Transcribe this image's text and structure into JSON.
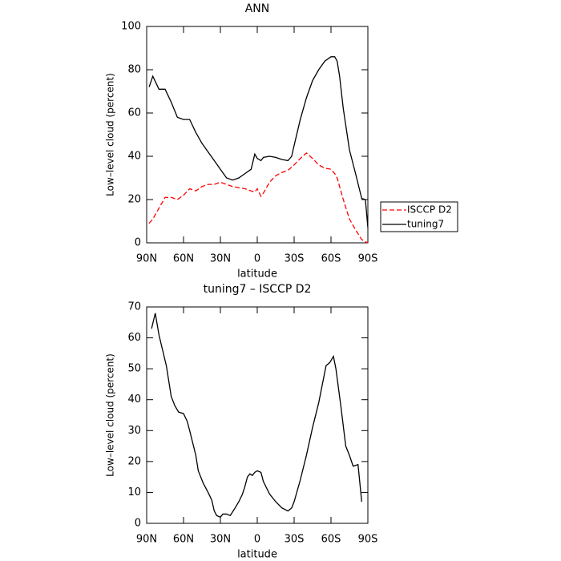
{
  "chart_data": [
    {
      "type": "line",
      "title": "ANN",
      "xlabel": "latitude",
      "ylabel": "Low–level cloud (percent)",
      "xlim": [
        90,
        -90
      ],
      "ylim": [
        0,
        100
      ],
      "xticks": [
        {
          "value": 90,
          "label": "90N"
        },
        {
          "value": 60,
          "label": "60N"
        },
        {
          "value": 30,
          "label": "30N"
        },
        0,
        {
          "value": -30,
          "label": "30S"
        },
        {
          "value": -60,
          "label": "60S"
        },
        {
          "value": -90,
          "label": "90S"
        }
      ],
      "yticks": [
        0,
        20,
        40,
        60,
        80,
        100
      ],
      "legend": "right",
      "x": [
        88,
        85,
        80,
        75,
        70,
        65,
        60,
        55,
        50,
        45,
        40,
        35,
        30,
        25,
        20,
        15,
        10,
        5,
        2,
        0,
        -3,
        -5,
        -10,
        -15,
        -20,
        -25,
        -28,
        -30,
        -35,
        -40,
        -45,
        -50,
        -55,
        -60,
        -63,
        -65,
        -67,
        -70,
        -75,
        -80,
        -85,
        -88,
        -90
      ],
      "series": [
        {
          "name": "ISCCP D2",
          "color": "#ff0000",
          "dash": true,
          "values": [
            9,
            11,
            16,
            21,
            21,
            20,
            22,
            25,
            24,
            26,
            27,
            27,
            28,
            27,
            26,
            25.5,
            25,
            24,
            23.5,
            25,
            21.5,
            23,
            28,
            31,
            32.5,
            33.5,
            35,
            36,
            39,
            41.5,
            39,
            36,
            34.5,
            34,
            32,
            30,
            26,
            20,
            11,
            6,
            1.5,
            0.5,
            0
          ]
        },
        {
          "name": "tuning7",
          "color": "#000000",
          "dash": false,
          "values": [
            72,
            77,
            71,
            71,
            65,
            58,
            57,
            57,
            51,
            46,
            42,
            38,
            34,
            30,
            29,
            30,
            32,
            34,
            41,
            39,
            38,
            39.5,
            40,
            39.5,
            38.5,
            38,
            40,
            45,
            57,
            67,
            75,
            80,
            84,
            86,
            86,
            84,
            77,
            62,
            43,
            32,
            20.5,
            20,
            7
          ]
        }
      ]
    },
    {
      "type": "line",
      "title": "tuning7 – ISCCP D2",
      "xlabel": "latitude",
      "ylabel": "Low–level cloud (percent)",
      "xlim": [
        90,
        -90
      ],
      "ylim": [
        0,
        70
      ],
      "xticks": [
        {
          "value": 90,
          "label": "90N"
        },
        {
          "value": 60,
          "label": "60N"
        },
        {
          "value": 30,
          "label": "30N"
        },
        0,
        {
          "value": -30,
          "label": "30S"
        },
        {
          "value": -60,
          "label": "60S"
        },
        {
          "value": -90,
          "label": "90S"
        }
      ],
      "yticks": [
        0,
        10,
        20,
        30,
        40,
        50,
        60,
        70
      ],
      "x": [
        86,
        83,
        80,
        77,
        74,
        72,
        70,
        67,
        64,
        60,
        57,
        55,
        50,
        48,
        44,
        40,
        37,
        35,
        33,
        30,
        28,
        25,
        22,
        18,
        15,
        12,
        10,
        8,
        6,
        4,
        2,
        0,
        -3,
        -5,
        -10,
        -15,
        -20,
        -25,
        -28,
        -30,
        -35,
        -40,
        -45,
        -50,
        -53,
        -56,
        -59,
        -62,
        -64,
        -68,
        -72,
        -75,
        -78,
        -82,
        -85
      ],
      "series": [
        {
          "color": "#000000",
          "dash": false,
          "values": [
            63,
            68,
            61,
            56,
            51,
            46,
            41,
            38,
            36,
            35.5,
            33,
            30,
            22,
            17,
            13,
            10,
            7.5,
            4,
            2.5,
            2,
            3,
            3,
            2.5,
            5,
            7,
            9.5,
            12,
            15,
            16,
            15.5,
            16.5,
            17,
            16.5,
            13.5,
            9.5,
            7,
            5,
            4,
            5,
            7,
            14,
            22,
            31,
            39,
            45,
            51,
            52,
            54,
            50,
            38,
            25,
            22,
            18.5,
            19,
            7
          ]
        }
      ]
    }
  ]
}
